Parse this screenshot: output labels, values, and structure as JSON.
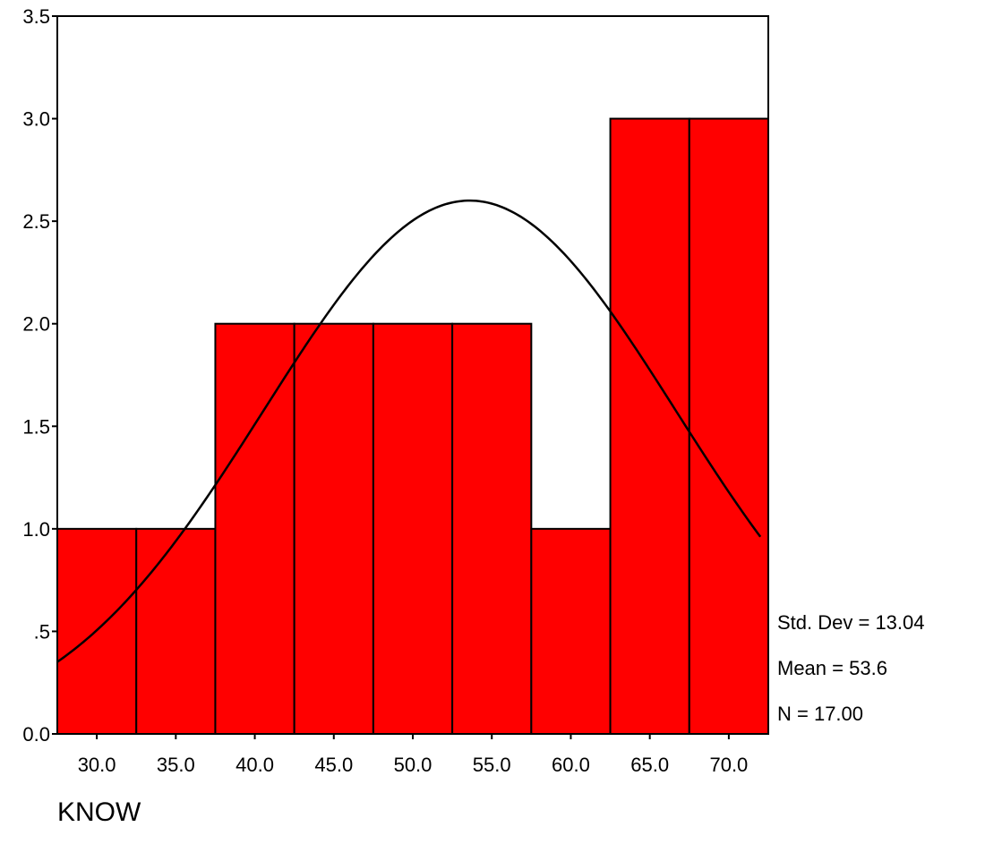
{
  "chart_data": {
    "type": "bar",
    "title": "",
    "xlabel": "KNOW",
    "ylabel": "",
    "bins": [
      {
        "center": 30.0,
        "count": 1
      },
      {
        "center": 35.0,
        "count": 1
      },
      {
        "center": 40.0,
        "count": 2
      },
      {
        "center": 45.0,
        "count": 2
      },
      {
        "center": 50.0,
        "count": 2
      },
      {
        "center": 55.0,
        "count": 2
      },
      {
        "center": 60.0,
        "count": 1
      },
      {
        "center": 65.0,
        "count": 3
      },
      {
        "center": 70.0,
        "count": 3
      }
    ],
    "bin_width": 5,
    "xlim": [
      27.5,
      72.5
    ],
    "ylim": [
      0,
      3.5
    ],
    "x_ticks": [
      {
        "value": 30,
        "label": "30.0"
      },
      {
        "value": 35,
        "label": "35.0"
      },
      {
        "value": 40,
        "label": "40.0"
      },
      {
        "value": 45,
        "label": "45.0"
      },
      {
        "value": 50,
        "label": "50.0"
      },
      {
        "value": 55,
        "label": "55.0"
      },
      {
        "value": 60,
        "label": "60.0"
      },
      {
        "value": 65,
        "label": "65.0"
      },
      {
        "value": 70,
        "label": "70.0"
      }
    ],
    "y_ticks": [
      {
        "value": 0,
        "label": "0.0"
      },
      {
        "value": 0.5,
        "label": ".5"
      },
      {
        "value": 1.0,
        "label": "1.0"
      },
      {
        "value": 1.5,
        "label": "1.5"
      },
      {
        "value": 2.0,
        "label": "2.0"
      },
      {
        "value": 2.5,
        "label": "2.5"
      },
      {
        "value": 3.0,
        "label": "3.0"
      },
      {
        "value": 3.5,
        "label": "3.5"
      }
    ],
    "normal_curve": {
      "mean": 53.6,
      "std_dev": 13.04,
      "n": 17,
      "x_end": 72.0
    },
    "stats": [
      "Std. Dev = 13.04",
      "Mean = 53.6",
      "N = 17.00"
    ],
    "bar_color": "#ff0000",
    "line_color": "#000000",
    "grid": false
  }
}
